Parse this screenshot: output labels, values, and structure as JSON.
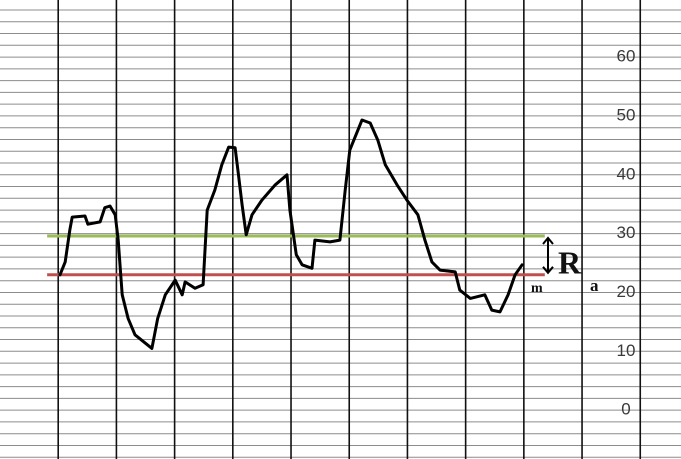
{
  "chart_data": {
    "type": "line",
    "xlim": [
      0,
      11.7
    ],
    "xticks": [
      1,
      2,
      3,
      4,
      5,
      6,
      7,
      8,
      9,
      10,
      11
    ],
    "ylim": [
      -8.3,
      69.7
    ],
    "yticks": [
      0,
      10,
      20,
      30,
      40,
      50,
      60
    ],
    "minor_yticks": [
      -8,
      -6,
      -4,
      -2,
      0,
      2,
      4,
      6,
      8,
      10,
      12,
      14,
      16,
      18,
      20,
      22,
      24,
      26,
      28,
      30,
      32,
      34,
      36,
      38,
      40,
      42,
      44,
      46,
      48,
      50,
      52,
      54,
      56,
      58,
      60,
      62,
      64,
      66,
      68
    ],
    "grid": true,
    "series": [
      {
        "color": "#000000",
        "x": [
          1.03,
          1.12,
          1.2,
          1.24,
          1.46,
          1.51,
          1.72,
          1.8,
          1.89,
          1.98,
          2.03,
          2.1,
          2.2,
          2.32,
          2.61,
          2.71,
          2.84,
          3.01,
          3.13,
          3.18,
          3.35,
          3.49,
          3.56,
          3.69,
          3.81,
          3.93,
          4.04,
          4.09,
          4.16,
          4.23,
          4.33,
          4.5,
          4.73,
          4.93,
          4.98,
          5.09,
          5.19,
          5.36,
          5.41,
          5.67,
          5.84,
          5.93,
          6.01,
          6.22,
          6.36,
          6.49,
          6.62,
          6.82,
          6.99,
          7.18,
          7.3,
          7.42,
          7.56,
          7.82,
          7.9,
          8.08,
          8.33,
          8.45,
          8.59,
          8.73,
          8.85,
          8.97
        ],
        "values": [
          23,
          25.2,
          30.6,
          32.8,
          33,
          31.6,
          32,
          34.4,
          34.7,
          33.2,
          28.9,
          19.6,
          15.6,
          12.8,
          10.5,
          15.6,
          19.6,
          22.1,
          19.6,
          21.8,
          20.7,
          21.3,
          34,
          37.4,
          41.7,
          44.7,
          44.6,
          40.5,
          34.9,
          29.8,
          33.2,
          35.7,
          38.3,
          40,
          34,
          26.4,
          24.7,
          24.1,
          28.9,
          28.6,
          28.9,
          37.4,
          44.2,
          49.3,
          48.8,
          45.9,
          41.7,
          38.3,
          35.7,
          33.2,
          28.9,
          25.2,
          23.8,
          23.5,
          20.4,
          19,
          19.6,
          17,
          16.7,
          19.6,
          23,
          24.7
        ]
      }
    ],
    "reference_lines": [
      {
        "value": 29.6,
        "color": "#9bbb59",
        "xrange": [
          0.81,
          9.36
        ]
      },
      {
        "value": 23,
        "color": "#c0504d",
        "xrange": [
          0.81,
          9.36
        ]
      }
    ],
    "annotations": [
      "m",
      "R",
      "a"
    ]
  }
}
